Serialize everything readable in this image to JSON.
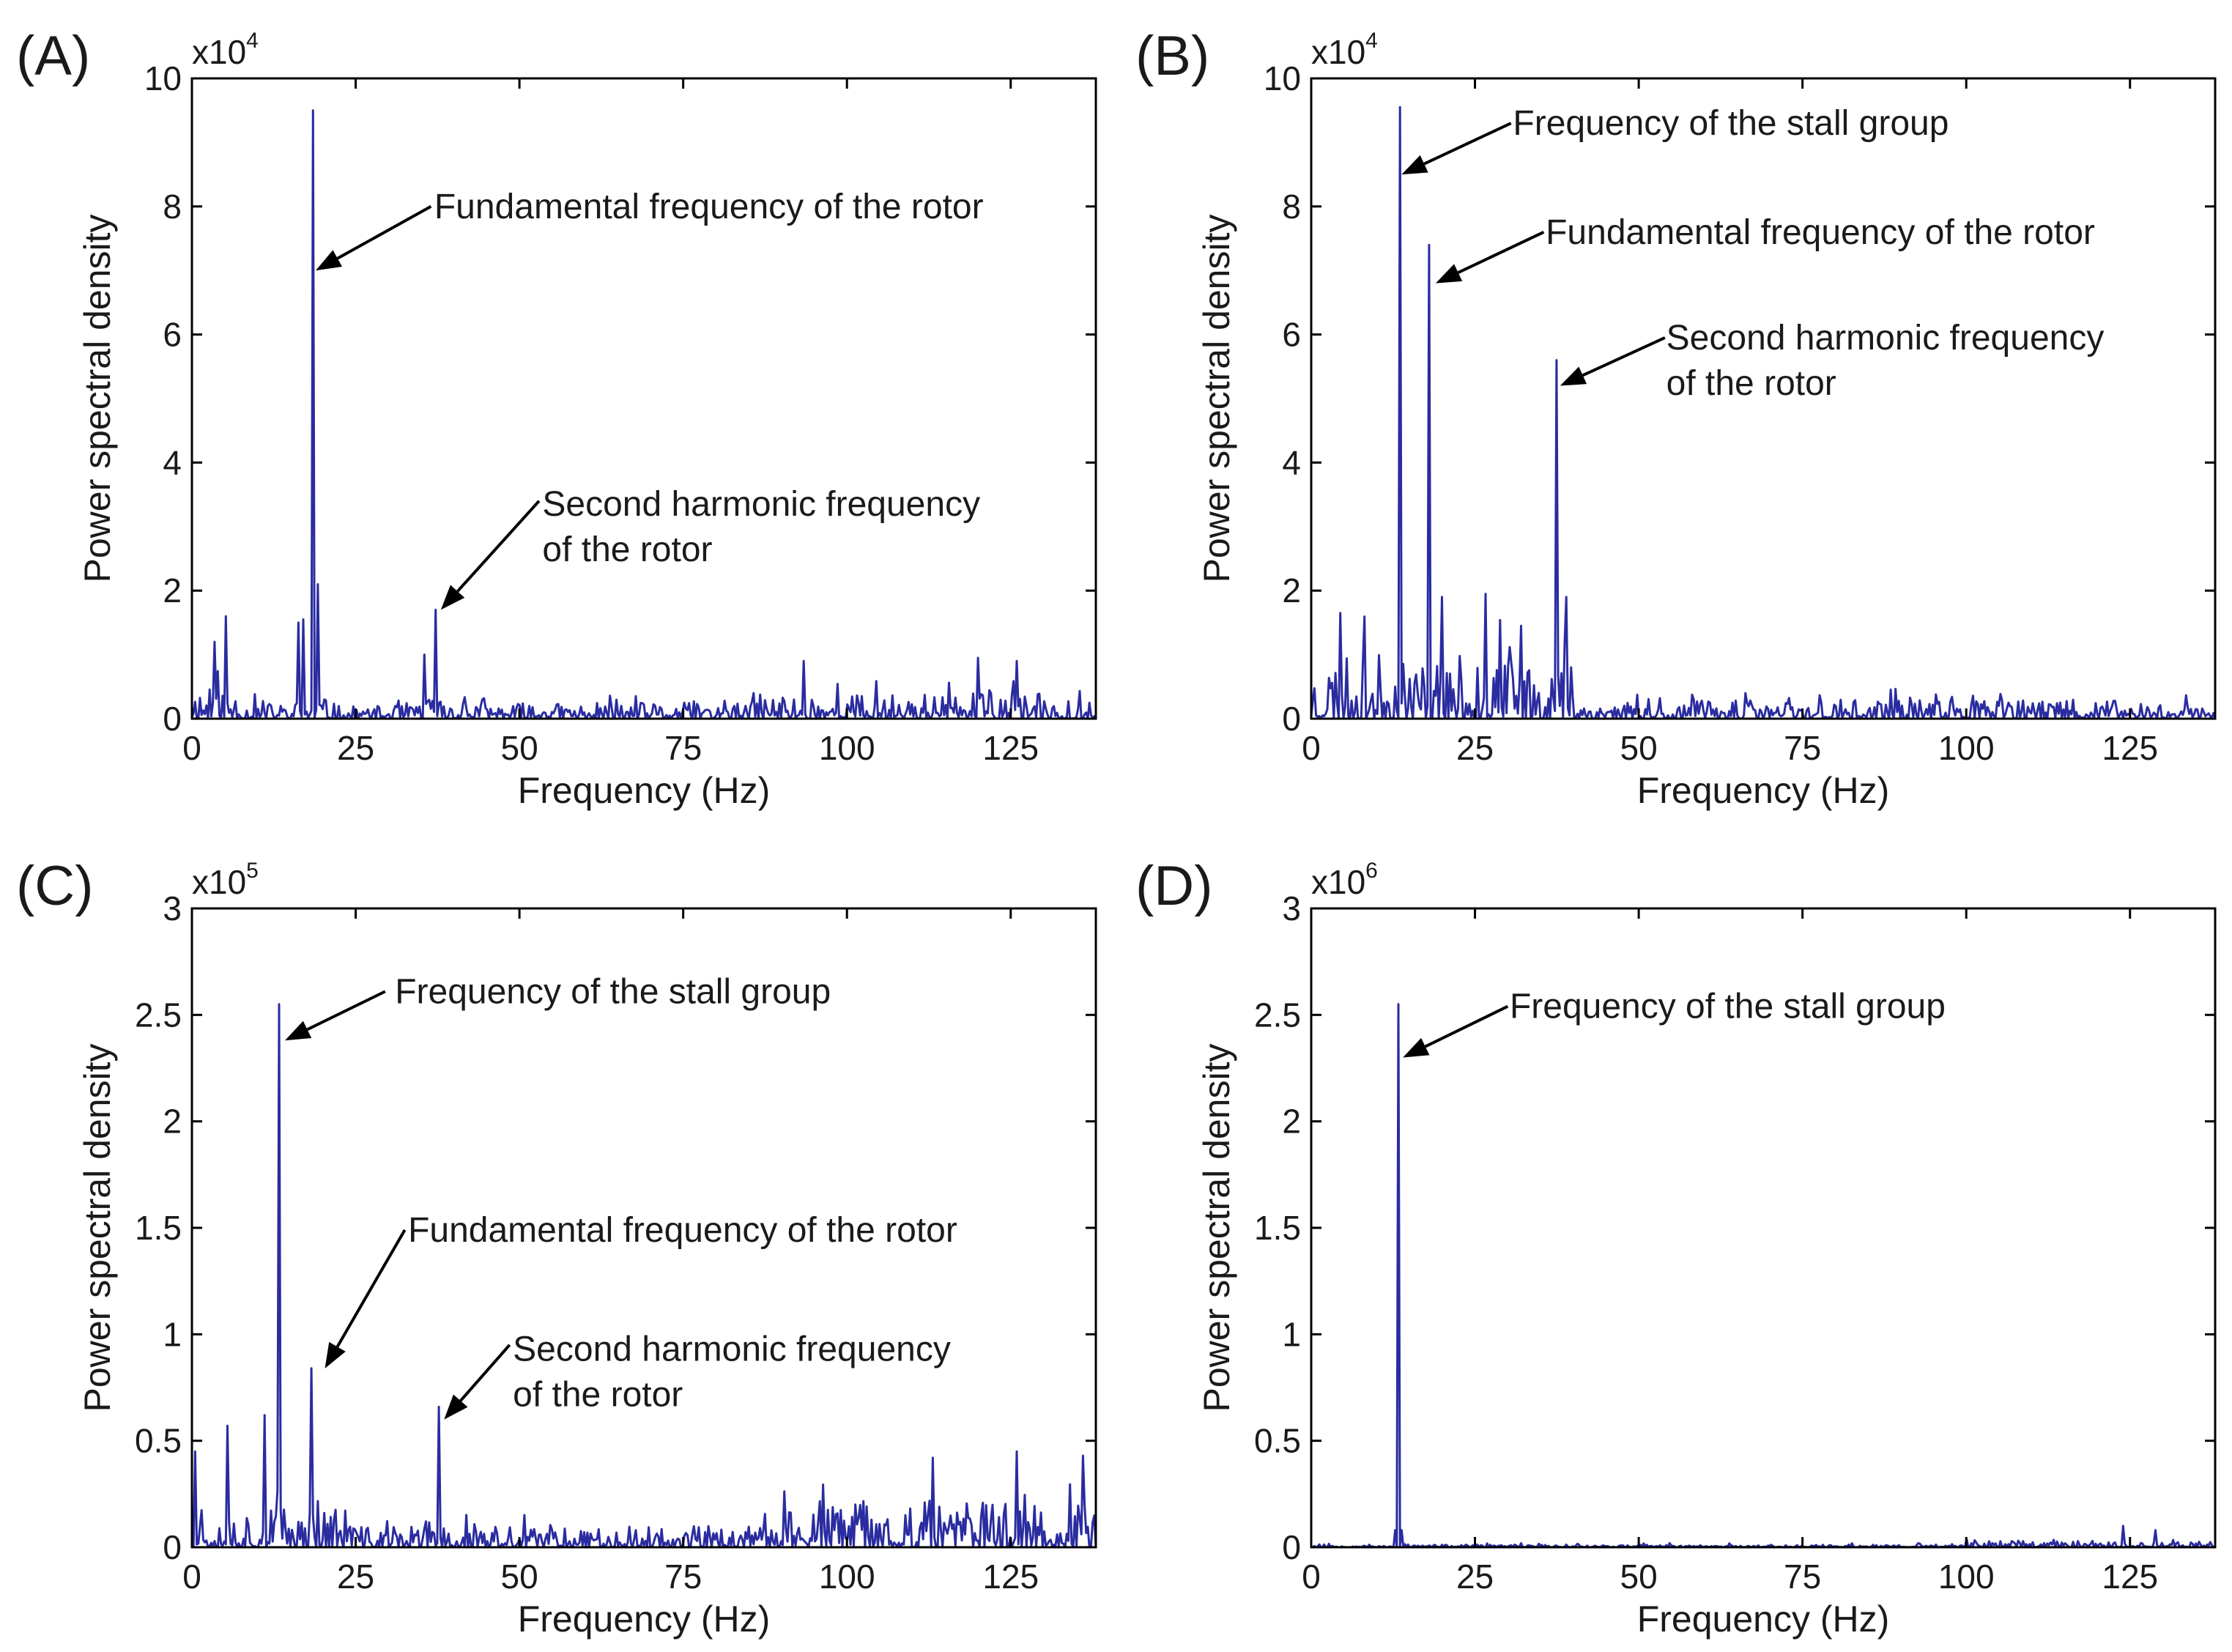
{
  "chart_data": [
    {
      "panel": "(A)",
      "type": "line",
      "title": "",
      "xlabel": "Frequency (Hz)",
      "ylabel": "Power spectral density",
      "exponent_base": "x10",
      "exponent_power": "4",
      "xlim": [
        0,
        138
      ],
      "ylim": [
        0,
        10
      ],
      "xticks": [
        0,
        25,
        50,
        75,
        100,
        125
      ],
      "yticks": [
        0,
        2,
        4,
        6,
        8,
        10
      ],
      "ytick_labels": [
        "0",
        "2",
        "4",
        "6",
        "8",
        "10"
      ],
      "series_color": "#2a2ca0",
      "seed": 11,
      "noise": [
        [
          0,
          2,
          0.55
        ],
        [
          2,
          8,
          0.5
        ],
        [
          8,
          16,
          0.25
        ],
        [
          16,
          22,
          0.3
        ],
        [
          22,
          34,
          0.2
        ],
        [
          34,
          45,
          0.35
        ],
        [
          45,
          85,
          0.25
        ],
        [
          85,
          138,
          0.4
        ]
      ],
      "peaks": [
        {
          "x": 18.5,
          "y": 9.5
        },
        {
          "x": 19.3,
          "y": 2.1
        },
        {
          "x": 17.0,
          "y": 1.55
        },
        {
          "x": 16.2,
          "y": 1.5
        },
        {
          "x": 5.1,
          "y": 1.6
        },
        {
          "x": 3.5,
          "y": 1.2
        },
        {
          "x": 37.2,
          "y": 1.7
        },
        {
          "x": 35.5,
          "y": 1.0
        },
        {
          "x": 93.5,
          "y": 0.9
        },
        {
          "x": 120.0,
          "y": 0.95
        },
        {
          "x": 126.0,
          "y": 0.9
        }
      ],
      "annotations": [
        {
          "lines": [
            "Fundamental frequency of the rotor"
          ],
          "target": [
            18.9,
            7.0
          ],
          "tail": [
            36.5,
            8.0
          ],
          "text_at": [
            37,
            8.0
          ]
        },
        {
          "lines": [
            "Second harmonic frequency",
            "of the rotor"
          ],
          "target": [
            38.0,
            1.7
          ],
          "tail": [
            53.0,
            3.4
          ],
          "text_at": [
            53.5,
            3.35
          ]
        }
      ]
    },
    {
      "panel": "(B)",
      "type": "line",
      "title": "",
      "xlabel": "Frequency (Hz)",
      "ylabel": "Power spectral density",
      "exponent_base": "x10",
      "exponent_power": "4",
      "xlim": [
        0,
        138
      ],
      "ylim": [
        0,
        10
      ],
      "xticks": [
        0,
        25,
        50,
        75,
        100,
        125
      ],
      "yticks": [
        0,
        2,
        4,
        6,
        8,
        10
      ],
      "ytick_labels": [
        "0",
        "2",
        "4",
        "6",
        "8",
        "10"
      ],
      "series_color": "#2a2ca0",
      "seed": 23,
      "noise": [
        [
          0,
          40,
          1.0
        ],
        [
          40,
          138,
          0.3
        ]
      ],
      "peaks": [
        {
          "x": 13.5,
          "y": 9.55
        },
        {
          "x": 18.0,
          "y": 7.4
        },
        {
          "x": 37.5,
          "y": 5.6
        },
        {
          "x": 39.0,
          "y": 1.9
        },
        {
          "x": 26.5,
          "y": 1.95
        },
        {
          "x": 20.0,
          "y": 1.9
        },
        {
          "x": 4.5,
          "y": 1.65
        },
        {
          "x": 32.0,
          "y": 1.45
        }
      ],
      "annotations": [
        {
          "lines": [
            "Frequency of the stall group"
          ],
          "target": [
            13.8,
            8.5
          ],
          "tail": [
            30.5,
            9.3
          ],
          "text_at": [
            30.8,
            9.3
          ]
        },
        {
          "lines": [
            "Fundamental frequency of the rotor"
          ],
          "target": [
            19.0,
            6.8
          ],
          "tail": [
            35.5,
            7.6
          ],
          "text_at": [
            35.8,
            7.6
          ]
        },
        {
          "lines": [
            "Second harmonic frequency",
            "of the rotor"
          ],
          "target": [
            38.0,
            5.2
          ],
          "tail": [
            54.0,
            5.95
          ],
          "text_at": [
            54.2,
            5.95
          ]
        }
      ]
    },
    {
      "panel": "(C)",
      "type": "line",
      "title": "",
      "xlabel": "Frequency (Hz)",
      "ylabel": "Power spectral density",
      "exponent_base": "x10",
      "exponent_power": "5",
      "xlim": [
        0,
        138
      ],
      "ylim": [
        0,
        3
      ],
      "xticks": [
        0,
        25,
        50,
        75,
        100,
        125
      ],
      "yticks": [
        0,
        0.5,
        1,
        1.5,
        2,
        2.5,
        3
      ],
      "ytick_labels": [
        "0",
        "0.5",
        "1",
        "1.5",
        "2",
        "2.5",
        "3"
      ],
      "series_color": "#2a2ca0",
      "seed": 37,
      "noise": [
        [
          0,
          25,
          0.2
        ],
        [
          25,
          90,
          0.1
        ],
        [
          90,
          138,
          0.22
        ]
      ],
      "peaks": [
        {
          "x": 13.3,
          "y": 2.55
        },
        {
          "x": 18.2,
          "y": 0.84
        },
        {
          "x": 37.6,
          "y": 0.66
        },
        {
          "x": 11.0,
          "y": 0.62
        },
        {
          "x": 5.5,
          "y": 0.57
        },
        {
          "x": 0.5,
          "y": 0.45
        },
        {
          "x": 126.0,
          "y": 0.45
        },
        {
          "x": 136.0,
          "y": 0.43
        },
        {
          "x": 113.0,
          "y": 0.42
        }
      ],
      "annotations": [
        {
          "lines": [
            "Frequency of the stall group"
          ],
          "target": [
            14.2,
            2.38
          ],
          "tail": [
            29.5,
            2.61
          ],
          "text_at": [
            31.0,
            2.61
          ]
        },
        {
          "lines": [
            "Fundamental frequency of the rotor"
          ],
          "target": [
            20.3,
            0.84
          ],
          "tail": [
            32.5,
            1.49
          ],
          "text_at": [
            33.0,
            1.49
          ]
        },
        {
          "lines": [
            "Second harmonic frequency",
            "of the rotor"
          ],
          "target": [
            38.5,
            0.6
          ],
          "tail": [
            48.5,
            0.95
          ],
          "text_at": [
            49.0,
            0.93
          ]
        }
      ]
    },
    {
      "panel": "(D)",
      "type": "line",
      "title": "",
      "xlabel": "Frequency (Hz)",
      "ylabel": "Power spectral density",
      "exponent_base": "x10",
      "exponent_power": "6",
      "xlim": [
        0,
        138
      ],
      "ylim": [
        0,
        3
      ],
      "xticks": [
        0,
        25,
        50,
        75,
        100,
        125
      ],
      "yticks": [
        0,
        0.5,
        1,
        1.5,
        2,
        2.5,
        3
      ],
      "ytick_labels": [
        "0",
        "0.5",
        "1",
        "1.5",
        "2",
        "2.5",
        "3"
      ],
      "series_color": "#2a2ca0",
      "seed": 53,
      "noise": [
        [
          0,
          100,
          0.012
        ],
        [
          100,
          138,
          0.035
        ]
      ],
      "peaks": [
        {
          "x": 13.3,
          "y": 2.55
        },
        {
          "x": 12.9,
          "y": 0.08
        },
        {
          "x": 13.7,
          "y": 0.08
        },
        {
          "x": 124.0,
          "y": 0.1
        },
        {
          "x": 129.0,
          "y": 0.08
        }
      ],
      "annotations": [
        {
          "lines": [
            "Frequency of the stall group"
          ],
          "target": [
            14.0,
            2.3
          ],
          "tail": [
            30.0,
            2.54
          ],
          "text_at": [
            30.3,
            2.54
          ]
        }
      ]
    }
  ]
}
